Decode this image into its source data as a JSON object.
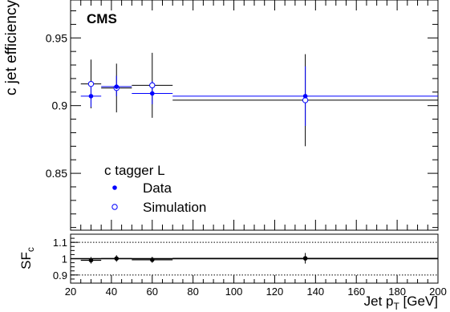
{
  "chart_data": [
    {
      "type": "scatter",
      "panel": "main",
      "experiment_label": "CMS",
      "ylabel": "c jet efficiency",
      "xlim": [
        20,
        200
      ],
      "ylim": [
        0.808,
        0.978
      ],
      "yticks": [
        0.85,
        0.9,
        0.95
      ],
      "ytick_labels": [
        "0.85",
        "0.9",
        "0.95"
      ],
      "legend": {
        "title": "c tagger L",
        "placement": "bottom-left",
        "entries": [
          "Data",
          "Simulation"
        ]
      },
      "colors": {
        "data": "#0000ff",
        "simulation": "#0000ff",
        "data_band": "#0000ff",
        "sim_band": "#000000"
      },
      "series": [
        {
          "name": "Data",
          "marker": "filled-circle",
          "points": [
            {
              "x": 30,
              "xlo": 25,
              "xhi": 35,
              "y": 0.907,
              "ylo": 0.899,
              "yhi": 0.915
            },
            {
              "x": 42.5,
              "xlo": 35,
              "xhi": 50,
              "y": 0.914,
              "ylo": 0.907,
              "yhi": 0.922
            },
            {
              "x": 60,
              "xlo": 50,
              "xhi": 70,
              "y": 0.909,
              "ylo": 0.901,
              "yhi": 0.918
            },
            {
              "x": 135,
              "xlo": 70,
              "xhi": 200,
              "y": 0.907,
              "ylo": 0.885,
              "yhi": 0.929
            }
          ]
        },
        {
          "name": "Simulation",
          "marker": "open-circle",
          "points": [
            {
              "x": 30,
              "xlo": 25,
              "xhi": 35,
              "y": 0.916,
              "ylo": 0.898,
              "yhi": 0.934
            },
            {
              "x": 42.5,
              "xlo": 35,
              "xhi": 50,
              "y": 0.913,
              "ylo": 0.895,
              "yhi": 0.931
            },
            {
              "x": 60,
              "xlo": 50,
              "xhi": 70,
              "y": 0.915,
              "ylo": 0.891,
              "yhi": 0.939
            },
            {
              "x": 135,
              "xlo": 70,
              "xhi": 200,
              "y": 0.904,
              "ylo": 0.87,
              "yhi": 0.938
            }
          ]
        }
      ]
    },
    {
      "type": "scatter",
      "panel": "ratio",
      "ylabel": "SF",
      "ylabel_sub": "c",
      "xlabel": "Jet p",
      "xlabel_sub": "T",
      "xlabel_unit": " [GeV]",
      "xlim": [
        20,
        200
      ],
      "ylim": [
        0.85,
        1.15
      ],
      "xticks": [
        20,
        40,
        60,
        80,
        100,
        120,
        140,
        160,
        180,
        200
      ],
      "xtick_labels": [
        "20",
        "40",
        "60",
        "80",
        "100",
        "120",
        "140",
        "160",
        "180",
        "200"
      ],
      "yticks": [
        0.9,
        1.0,
        1.1
      ],
      "ytick_labels": [
        "0.9",
        "1",
        "1.1"
      ],
      "reference_lines": [
        0.9,
        1.0,
        1.1
      ],
      "series": [
        {
          "name": "SF",
          "marker": "filled-circle",
          "points": [
            {
              "x": 30,
              "xlo": 25,
              "xhi": 35,
              "y": 0.99,
              "ylo": 0.97,
              "yhi": 1.01
            },
            {
              "x": 42.5,
              "xlo": 35,
              "xhi": 50,
              "y": 1.001,
              "ylo": 0.981,
              "yhi": 1.021
            },
            {
              "x": 60,
              "xlo": 50,
              "xhi": 70,
              "y": 0.993,
              "ylo": 0.975,
              "yhi": 1.011
            },
            {
              "x": 135,
              "xlo": 70,
              "xhi": 200,
              "y": 1.002,
              "ylo": 0.97,
              "yhi": 1.035
            }
          ]
        }
      ]
    }
  ]
}
